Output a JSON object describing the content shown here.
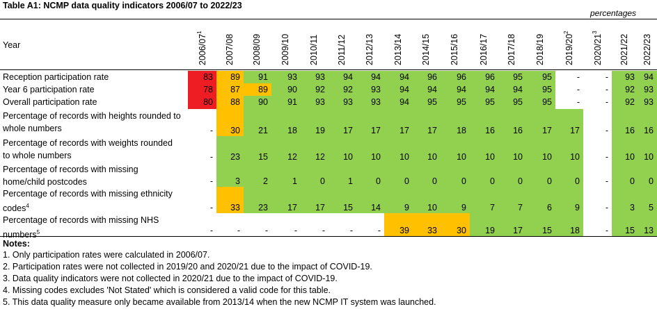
{
  "title": "Table A1: NCMP data quality indicators 2006/07 to 2022/23",
  "unit_label": "percentages",
  "year_header": "Year",
  "columns": [
    {
      "label": "2006/07",
      "sup": "1"
    },
    {
      "label": "2007/08",
      "sup": ""
    },
    {
      "label": "2008/09",
      "sup": ""
    },
    {
      "label": "2009/10",
      "sup": ""
    },
    {
      "label": "2010/11",
      "sup": ""
    },
    {
      "label": "2011/12",
      "sup": ""
    },
    {
      "label": "2012/13",
      "sup": ""
    },
    {
      "label": "2013/14",
      "sup": ""
    },
    {
      "label": "2014/15",
      "sup": ""
    },
    {
      "label": "2015/16",
      "sup": ""
    },
    {
      "label": "2016/17",
      "sup": ""
    },
    {
      "label": "2017/18",
      "sup": ""
    },
    {
      "label": "2018/19",
      "sup": ""
    },
    {
      "label": "2019/20",
      "sup": "2"
    },
    {
      "label": "2020/21",
      "sup": "3"
    },
    {
      "label": "2021/22",
      "sup": ""
    },
    {
      "label": "2022/23",
      "sup": ""
    }
  ],
  "colors": {
    "red": "#ee1c23",
    "amber": "#ffc000",
    "green": "#92d050",
    "none": "#ffffff"
  },
  "rows": [
    {
      "lines": [
        {
          "text": "Reception participation rate",
          "sup": ""
        }
      ],
      "values": [
        "83",
        "89",
        "91",
        "93",
        "93",
        "94",
        "94",
        "94",
        "96",
        "96",
        "96",
        "95",
        "95",
        "-",
        "-",
        "93",
        "94"
      ],
      "colors": [
        "red",
        "amber",
        "green",
        "green",
        "green",
        "green",
        "green",
        "green",
        "green",
        "green",
        "green",
        "green",
        "green",
        "none",
        "none",
        "green",
        "green"
      ]
    },
    {
      "lines": [
        {
          "text": "Year 6 participation rate",
          "sup": ""
        }
      ],
      "values": [
        "78",
        "87",
        "89",
        "90",
        "92",
        "92",
        "93",
        "94",
        "94",
        "94",
        "94",
        "94",
        "95",
        "-",
        "-",
        "92",
        "93"
      ],
      "colors": [
        "red",
        "amber",
        "amber",
        "green",
        "green",
        "green",
        "green",
        "green",
        "green",
        "green",
        "green",
        "green",
        "green",
        "none",
        "none",
        "green",
        "green"
      ]
    },
    {
      "lines": [
        {
          "text": "Overall participation rate",
          "sup": ""
        }
      ],
      "values": [
        "80",
        "88",
        "90",
        "91",
        "93",
        "93",
        "93",
        "94",
        "95",
        "95",
        "95",
        "95",
        "95",
        "-",
        "-",
        "92",
        "93"
      ],
      "colors": [
        "red",
        "amber",
        "green",
        "green",
        "green",
        "green",
        "green",
        "green",
        "green",
        "green",
        "green",
        "green",
        "green",
        "none",
        "none",
        "green",
        "green"
      ]
    },
    {
      "lines": [
        {
          "text": "Percentage of records with heights rounded to",
          "sup": ""
        },
        {
          "text": "whole numbers",
          "sup": ""
        }
      ],
      "values": [
        "-",
        "30",
        "21",
        "18",
        "19",
        "17",
        "17",
        "17",
        "17",
        "18",
        "16",
        "16",
        "17",
        "17",
        "-",
        "16",
        "16"
      ],
      "colors": [
        "none",
        "amber",
        "green",
        "green",
        "green",
        "green",
        "green",
        "green",
        "green",
        "green",
        "green",
        "green",
        "green",
        "green",
        "none",
        "green",
        "green"
      ]
    },
    {
      "lines": [
        {
          "text": "Percentage of records with weights rounded",
          "sup": ""
        },
        {
          "text": "to whole numbers",
          "sup": ""
        }
      ],
      "values": [
        "-",
        "23",
        "15",
        "12",
        "12",
        "10",
        "10",
        "10",
        "10",
        "10",
        "10",
        "10",
        "10",
        "10",
        "-",
        "10",
        "10"
      ],
      "colors": [
        "none",
        "green",
        "green",
        "green",
        "green",
        "green",
        "green",
        "green",
        "green",
        "green",
        "green",
        "green",
        "green",
        "green",
        "none",
        "green",
        "green"
      ]
    },
    {
      "lines": [
        {
          "text": "Percentage of records with missing",
          "sup": ""
        },
        {
          "text": "home/child postcodes",
          "sup": ""
        }
      ],
      "values": [
        "-",
        "3",
        "2",
        "1",
        "0",
        "1",
        "0",
        "0",
        "0",
        "0",
        "0",
        "0",
        "0",
        "0",
        "-",
        "0",
        "0"
      ],
      "colors": [
        "none",
        "green",
        "green",
        "green",
        "green",
        "green",
        "green",
        "green",
        "green",
        "green",
        "green",
        "green",
        "green",
        "green",
        "none",
        "green",
        "green"
      ]
    },
    {
      "lines": [
        {
          "text": "Percentage of records with missing ethnicity",
          "sup": ""
        },
        {
          "text": "codes",
          "sup": "4"
        }
      ],
      "values": [
        "-",
        "33",
        "23",
        "17",
        "17",
        "15",
        "14",
        "9",
        "10",
        "9",
        "7",
        "7",
        "6",
        "9",
        "-",
        "3",
        "5"
      ],
      "colors": [
        "none",
        "amber",
        "green",
        "green",
        "green",
        "green",
        "green",
        "green",
        "green",
        "green",
        "green",
        "green",
        "green",
        "green",
        "none",
        "green",
        "green"
      ]
    },
    {
      "lines": [
        {
          "text": "Percentage of records with missing NHS",
          "sup": ""
        },
        {
          "text": "numbers",
          "sup": "5"
        }
      ],
      "values": [
        "-",
        "-",
        "-",
        "-",
        "-",
        "-",
        "-",
        "39",
        "33",
        "30",
        "19",
        "17",
        "15",
        "18",
        "-",
        "15",
        "13"
      ],
      "colors": [
        "none",
        "none",
        "none",
        "none",
        "none",
        "none",
        "none",
        "amber",
        "amber",
        "amber",
        "green",
        "green",
        "green",
        "green",
        "none",
        "green",
        "green"
      ]
    }
  ],
  "notes_title": "Notes:",
  "notes": [
    "1. Only participation rates were calculated in 2006/07.",
    "2. Participation rates were not collected in 2019/20 and 2020/21 due to the impact of COVID-19.",
    "3. Data quality indicators were not collected in 2020/21 due to the impact of COVID-19.",
    "4. Missing codes excludes 'Not Stated' which is considered a valid code for this table.",
    "5. This data quality measure only became available from 2013/14 when the new NCMP IT system was launched."
  ]
}
